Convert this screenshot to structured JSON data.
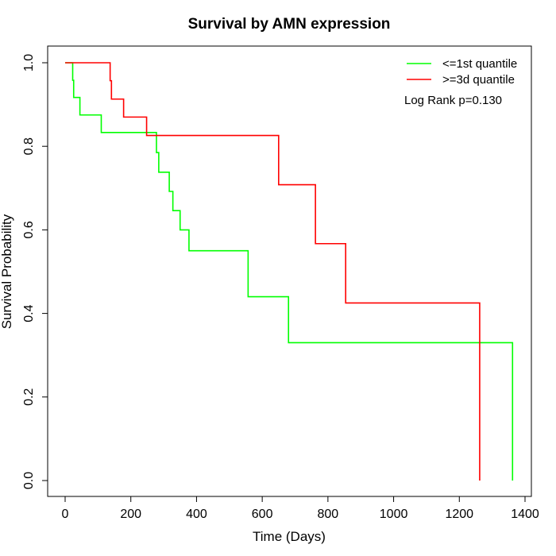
{
  "chart_data": {
    "type": "line",
    "step": true,
    "title": "Survival by AMN expression",
    "xlabel": "Time (Days)",
    "ylabel": "Survival Probability",
    "xlim": [
      0,
      1400
    ],
    "ylim": [
      0,
      1
    ],
    "x_ticks": [
      0,
      200,
      400,
      600,
      800,
      1000,
      1200,
      1400
    ],
    "y_ticks": [
      0.0,
      0.2,
      0.4,
      0.6,
      0.8,
      1.0
    ],
    "x_tick_labels": [
      "0",
      "200",
      "400",
      "600",
      "800",
      "1000",
      "1200",
      "1400"
    ],
    "y_tick_labels": [
      "0.0",
      "0.2",
      "0.4",
      "0.6",
      "0.8",
      "1.0"
    ],
    "grid": false,
    "legend_position": "top-right",
    "annotation": "Log Rank p=0.130",
    "series": [
      {
        "name": "<=1st quantile",
        "color": "#00ff00",
        "points": [
          [
            0,
            1.0
          ],
          [
            23,
            1.0
          ],
          [
            23,
            0.958
          ],
          [
            26,
            0.958
          ],
          [
            26,
            0.917
          ],
          [
            45,
            0.917
          ],
          [
            45,
            0.875
          ],
          [
            110,
            0.875
          ],
          [
            110,
            0.833
          ],
          [
            278,
            0.833
          ],
          [
            278,
            0.785
          ],
          [
            285,
            0.785
          ],
          [
            285,
            0.738
          ],
          [
            317,
            0.738
          ],
          [
            317,
            0.692
          ],
          [
            328,
            0.692
          ],
          [
            328,
            0.646
          ],
          [
            350,
            0.646
          ],
          [
            350,
            0.6
          ],
          [
            377,
            0.6
          ],
          [
            377,
            0.55
          ],
          [
            557,
            0.55
          ],
          [
            557,
            0.44
          ],
          [
            680,
            0.44
          ],
          [
            680,
            0.33
          ],
          [
            1362,
            0.33
          ],
          [
            1362,
            0.0
          ]
        ]
      },
      {
        "name": ">=3d quantile",
        "color": "#ff0000",
        "points": [
          [
            0,
            1.0
          ],
          [
            137,
            1.0
          ],
          [
            137,
            0.957
          ],
          [
            141,
            0.957
          ],
          [
            141,
            0.913
          ],
          [
            178,
            0.913
          ],
          [
            178,
            0.87
          ],
          [
            248,
            0.87
          ],
          [
            248,
            0.826
          ],
          [
            650,
            0.826
          ],
          [
            650,
            0.708
          ],
          [
            762,
            0.708
          ],
          [
            762,
            0.567
          ],
          [
            854,
            0.567
          ],
          [
            854,
            0.425
          ],
          [
            1262,
            0.425
          ],
          [
            1262,
            0.0
          ]
        ]
      }
    ]
  }
}
